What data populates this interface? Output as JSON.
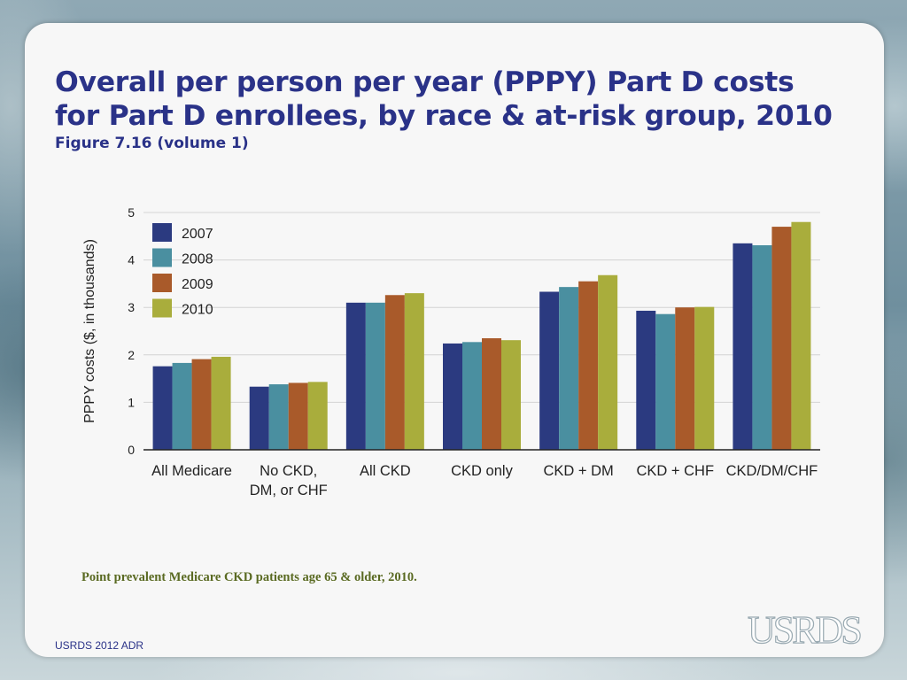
{
  "slide": {
    "title_line1": "Overall per person per year (PPPY) Part D costs",
    "title_line2": "for Part D enrollees, by race & at-risk group, 2010",
    "subtitle": "Figure 7.16 (volume 1)",
    "footnote": "Point prevalent Medicare CKD patients age 65 & older, 2010.",
    "source": "USRDS 2012 ADR",
    "logo_text": "USRDS"
  },
  "chart_data": {
    "type": "bar",
    "ylabel": "PPPY costs ($, in thousands)",
    "ylim": [
      0,
      5
    ],
    "yticks": [
      0,
      1,
      2,
      3,
      4,
      5
    ],
    "grid": true,
    "legend_position": "top-left",
    "categories": [
      [
        "All Medicare"
      ],
      [
        "No CKD,",
        "DM, or CHF"
      ],
      [
        "All CKD"
      ],
      [
        "CKD only"
      ],
      [
        "CKD + DM"
      ],
      [
        "CKD + CHF"
      ],
      [
        "CKD/DM/CHF"
      ]
    ],
    "series": [
      {
        "name": "2007",
        "color": "#2b3a80",
        "values": [
          1.76,
          1.33,
          3.1,
          2.24,
          3.33,
          2.93,
          4.35
        ]
      },
      {
        "name": "2008",
        "color": "#4a8fa0",
        "values": [
          1.83,
          1.38,
          3.1,
          2.27,
          3.43,
          2.86,
          4.31
        ]
      },
      {
        "name": "2009",
        "color": "#a95a2a",
        "values": [
          1.91,
          1.41,
          3.26,
          2.35,
          3.55,
          3.0,
          4.7
        ]
      },
      {
        "name": "2010",
        "color": "#a9ad3c",
        "values": [
          1.96,
          1.43,
          3.3,
          2.31,
          3.68,
          3.01,
          4.8
        ]
      }
    ]
  }
}
